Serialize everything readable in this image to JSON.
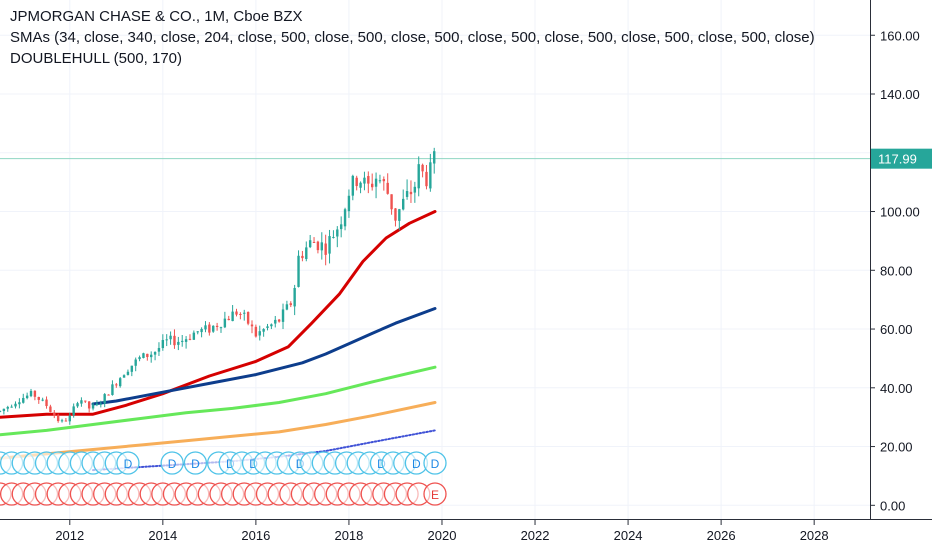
{
  "legend": {
    "title": "JPMORGAN CHASE & CO., 1M, Cboe BZX",
    "smas": "SMAs (34, close, 340, close, 204, close, 500, close, 500, close, 500, close, 500, close, 500, close, 500, close, 500, close)",
    "doublehull": "DOUBLEHULL (500, 170)"
  },
  "colors": {
    "up": "#26a69a",
    "down": "#ef5350",
    "sma34": "#d50000",
    "sma204": "#0d3d8c",
    "green_line": "#66e85a",
    "orange_line": "#f7ae59",
    "blue_dotted": "#3f51d6",
    "last_price_line": "#8fd6c2",
    "grid": "#f0f3fa",
    "axis_text": "#131722"
  },
  "chart_data": {
    "type": "candlestick",
    "title": "JPMORGAN CHASE & CO., 1M, Cboe BZX",
    "x_ticks": [
      "2012",
      "2014",
      "2016",
      "2018",
      "2020",
      "2022",
      "2024",
      "2026",
      "2028"
    ],
    "y_ticks": [
      "0.00",
      "20.00",
      "40.00",
      "60.00",
      "80.00",
      "100.00",
      "120.00",
      "140.00",
      "160.00"
    ],
    "ylim": [
      -5,
      172
    ],
    "xlim": [
      2010.5,
      2029.2
    ],
    "last_price": "117.99",
    "price_keypoints": [
      [
        2010.5,
        32
      ],
      [
        2010.9,
        36
      ],
      [
        2011.2,
        38
      ],
      [
        2011.5,
        34
      ],
      [
        2011.8,
        28
      ],
      [
        2012.0,
        30
      ],
      [
        2012.2,
        37
      ],
      [
        2012.4,
        33
      ],
      [
        2012.6,
        34
      ],
      [
        2012.9,
        40
      ],
      [
        2013.2,
        46
      ],
      [
        2013.5,
        50
      ],
      [
        2013.8,
        52
      ],
      [
        2014.1,
        56
      ],
      [
        2014.4,
        56
      ],
      [
        2014.7,
        59
      ],
      [
        2015.0,
        60
      ],
      [
        2015.4,
        64
      ],
      [
        2015.6,
        66
      ],
      [
        2015.8,
        63
      ],
      [
        2016.0,
        58
      ],
      [
        2016.2,
        60
      ],
      [
        2016.5,
        63
      ],
      [
        2016.8,
        70
      ],
      [
        2016.9,
        84
      ],
      [
        2017.2,
        90
      ],
      [
        2017.5,
        88
      ],
      [
        2017.8,
        96
      ],
      [
        2018.0,
        107
      ],
      [
        2018.2,
        112
      ],
      [
        2018.4,
        108
      ],
      [
        2018.6,
        112
      ],
      [
        2018.8,
        108
      ],
      [
        2019.0,
        98
      ],
      [
        2019.2,
        104
      ],
      [
        2019.4,
        108
      ],
      [
        2019.5,
        114
      ],
      [
        2019.7,
        111
      ],
      [
        2019.85,
        118
      ]
    ],
    "series": [
      {
        "name": "SMA 34",
        "style": "solid",
        "points": [
          [
            2010.5,
            30
          ],
          [
            2011.5,
            31
          ],
          [
            2012.5,
            31
          ],
          [
            2013.2,
            34
          ],
          [
            2014.0,
            38
          ],
          [
            2015.0,
            44
          ],
          [
            2016.0,
            49
          ],
          [
            2016.7,
            54
          ],
          [
            2017.2,
            62
          ],
          [
            2017.8,
            72
          ],
          [
            2018.3,
            83
          ],
          [
            2018.8,
            91
          ],
          [
            2019.3,
            96
          ],
          [
            2019.85,
            100
          ]
        ]
      },
      {
        "name": "SMA 204",
        "style": "solid",
        "points": [
          [
            2012.5,
            34.5
          ],
          [
            2013.0,
            35.5
          ],
          [
            2014.0,
            38.5
          ],
          [
            2015.0,
            41.5
          ],
          [
            2016.0,
            44.5
          ],
          [
            2017.0,
            48.5
          ],
          [
            2017.5,
            51.5
          ],
          [
            2018.0,
            55
          ],
          [
            2018.5,
            58.5
          ],
          [
            2019.0,
            62
          ],
          [
            2019.85,
            67
          ]
        ]
      },
      {
        "name": "",
        "style": "solid",
        "points": [
          [
            2010.5,
            24
          ],
          [
            2011.5,
            25.5
          ],
          [
            2012.5,
            27.5
          ],
          [
            2013.5,
            29.5
          ],
          [
            2014.5,
            31.5
          ],
          [
            2015.5,
            33
          ],
          [
            2016.5,
            35
          ],
          [
            2017.5,
            38
          ],
          [
            2018.5,
            42
          ],
          [
            2019.85,
            47
          ]
        ]
      },
      {
        "name": "",
        "style": "solid",
        "points": [
          [
            2010.5,
            16
          ],
          [
            2011.5,
            17.5
          ],
          [
            2012.5,
            19
          ],
          [
            2013.5,
            20.5
          ],
          [
            2014.5,
            22
          ],
          [
            2015.5,
            23.5
          ],
          [
            2016.5,
            25
          ],
          [
            2017.5,
            27.5
          ],
          [
            2018.5,
            30.5
          ],
          [
            2019.85,
            35
          ]
        ]
      },
      {
        "name": "",
        "style": "dotted",
        "points": [
          [
            2012.5,
            12
          ],
          [
            2013.5,
            13
          ],
          [
            2014.5,
            14
          ],
          [
            2015.5,
            15
          ],
          [
            2016.5,
            16.5
          ],
          [
            2017.5,
            18.5
          ],
          [
            2018.5,
            21.5
          ],
          [
            2019.85,
            25.5
          ]
        ]
      }
    ],
    "dividend_markers": [
      {
        "x": 2010.5,
        "label": ""
      },
      {
        "x": 2010.75,
        "label": ""
      },
      {
        "x": 2011.0,
        "label": ""
      },
      {
        "x": 2011.25,
        "label": ""
      },
      {
        "x": 2011.5,
        "label": ""
      },
      {
        "x": 2011.75,
        "label": ""
      },
      {
        "x": 2012.0,
        "label": ""
      },
      {
        "x": 2012.25,
        "label": ""
      },
      {
        "x": 2012.5,
        "label": ""
      },
      {
        "x": 2012.75,
        "label": ""
      },
      {
        "x": 2013.0,
        "label": ""
      },
      {
        "x": 2013.25,
        "label": "D"
      },
      {
        "x": 2014.2,
        "label": "D"
      },
      {
        "x": 2014.7,
        "label": "D"
      },
      {
        "x": 2015.2,
        "label": ""
      },
      {
        "x": 2015.45,
        "label": "D"
      },
      {
        "x": 2015.7,
        "label": ""
      },
      {
        "x": 2015.95,
        "label": "D"
      },
      {
        "x": 2016.2,
        "label": ""
      },
      {
        "x": 2016.45,
        "label": ""
      },
      {
        "x": 2016.7,
        "label": ""
      },
      {
        "x": 2016.95,
        "label": "D"
      },
      {
        "x": 2017.2,
        "label": ""
      },
      {
        "x": 2017.45,
        "label": ""
      },
      {
        "x": 2017.7,
        "label": ""
      },
      {
        "x": 2017.95,
        "label": ""
      },
      {
        "x": 2018.2,
        "label": ""
      },
      {
        "x": 2018.45,
        "label": ""
      },
      {
        "x": 2018.7,
        "label": "D"
      },
      {
        "x": 2018.95,
        "label": ""
      },
      {
        "x": 2019.2,
        "label": ""
      },
      {
        "x": 2019.45,
        "label": "D"
      },
      {
        "x": 2019.85,
        "label": "D"
      }
    ],
    "earnings_markers": [
      {
        "x": 2010.5,
        "label": ""
      },
      {
        "x": 2010.75,
        "label": ""
      },
      {
        "x": 2011.0,
        "label": ""
      },
      {
        "x": 2011.25,
        "label": ""
      },
      {
        "x": 2011.5,
        "label": ""
      },
      {
        "x": 2011.75,
        "label": ""
      },
      {
        "x": 2012.0,
        "label": ""
      },
      {
        "x": 2012.25,
        "label": ""
      },
      {
        "x": 2012.5,
        "label": ""
      },
      {
        "x": 2012.75,
        "label": ""
      },
      {
        "x": 2013.0,
        "label": ""
      },
      {
        "x": 2013.25,
        "label": ""
      },
      {
        "x": 2013.5,
        "label": ""
      },
      {
        "x": 2013.75,
        "label": ""
      },
      {
        "x": 2014.0,
        "label": ""
      },
      {
        "x": 2014.25,
        "label": ""
      },
      {
        "x": 2014.5,
        "label": ""
      },
      {
        "x": 2014.75,
        "label": ""
      },
      {
        "x": 2015.0,
        "label": ""
      },
      {
        "x": 2015.25,
        "label": ""
      },
      {
        "x": 2015.5,
        "label": ""
      },
      {
        "x": 2015.75,
        "label": ""
      },
      {
        "x": 2016.0,
        "label": ""
      },
      {
        "x": 2016.25,
        "label": ""
      },
      {
        "x": 2016.5,
        "label": ""
      },
      {
        "x": 2016.75,
        "label": ""
      },
      {
        "x": 2017.0,
        "label": ""
      },
      {
        "x": 2017.25,
        "label": ""
      },
      {
        "x": 2017.5,
        "label": ""
      },
      {
        "x": 2017.75,
        "label": ""
      },
      {
        "x": 2018.0,
        "label": ""
      },
      {
        "x": 2018.25,
        "label": ""
      },
      {
        "x": 2018.5,
        "label": ""
      },
      {
        "x": 2018.75,
        "label": ""
      },
      {
        "x": 2019.0,
        "label": ""
      },
      {
        "x": 2019.25,
        "label": ""
      },
      {
        "x": 2019.5,
        "label": ""
      },
      {
        "x": 2019.85,
        "label": "E"
      }
    ]
  }
}
